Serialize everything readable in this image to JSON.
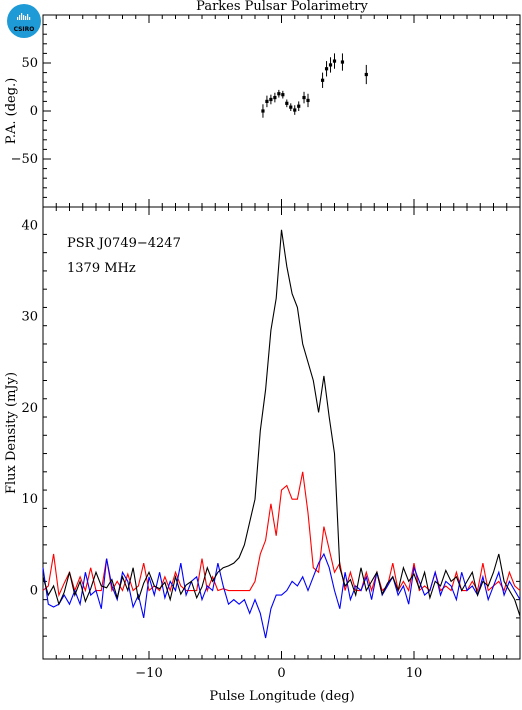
{
  "chart_data": {
    "type": "line",
    "title": "Parkes Pulsar Polarimetry",
    "logo": "CSIRO",
    "logo_colors": {
      "dark": "#0a5c8a",
      "light": "#1e9ad6"
    },
    "annotations": [
      "PSR J0749−4247",
      "1379 MHz"
    ],
    "xlabel": "Pulse Longitude (deg)",
    "xlim": [
      -18,
      18
    ],
    "xticks": [
      -10,
      0,
      10
    ],
    "xtick_labels": [
      "−10",
      "0",
      "10"
    ],
    "pa_panel": {
      "ylabel": "P.A. (deg.)",
      "ylim": [
        -100,
        100
      ],
      "yticks": [
        -50,
        0,
        50
      ],
      "ytick_labels": [
        "−50",
        "0",
        "50"
      ],
      "points": [
        {
          "x": -1.4,
          "y": 0,
          "err": 7
        },
        {
          "x": -1.1,
          "y": 10,
          "err": 6
        },
        {
          "x": -0.8,
          "y": 12,
          "err": 5
        },
        {
          "x": -0.5,
          "y": 14,
          "err": 5
        },
        {
          "x": -0.2,
          "y": 18,
          "err": 4
        },
        {
          "x": 0.1,
          "y": 17,
          "err": 4
        },
        {
          "x": 0.4,
          "y": 8,
          "err": 4
        },
        {
          "x": 0.7,
          "y": 4,
          "err": 4
        },
        {
          "x": 1.0,
          "y": 1,
          "err": 5
        },
        {
          "x": 1.3,
          "y": 5,
          "err": 5
        },
        {
          "x": 1.7,
          "y": 14,
          "err": 6
        },
        {
          "x": 2.0,
          "y": 11,
          "err": 7
        },
        {
          "x": 3.1,
          "y": 32,
          "err": 8
        },
        {
          "x": 3.4,
          "y": 44,
          "err": 8
        },
        {
          "x": 3.7,
          "y": 48,
          "err": 8
        },
        {
          "x": 4.0,
          "y": 52,
          "err": 8
        },
        {
          "x": 4.6,
          "y": 51,
          "err": 9
        },
        {
          "x": 6.4,
          "y": 38,
          "err": 10
        }
      ]
    },
    "flux_panel": {
      "ylabel": "Flux Density (mJy)",
      "ylim": [
        -7.5,
        42
      ],
      "yticks": [
        0,
        10,
        20,
        30,
        40
      ],
      "ytick_labels": [
        "0",
        "10",
        "20",
        "30",
        "40"
      ],
      "x": [
        -18,
        -17.6,
        -17.2,
        -16.8,
        -16.4,
        -16.0,
        -15.6,
        -15.2,
        -14.8,
        -14.4,
        -14.0,
        -13.6,
        -13.2,
        -12.8,
        -12.4,
        -12.0,
        -11.6,
        -11.2,
        -10.8,
        -10.4,
        -10.0,
        -9.6,
        -9.2,
        -8.8,
        -8.4,
        -8.0,
        -7.6,
        -7.2,
        -6.8,
        -6.4,
        -6.0,
        -5.6,
        -5.2,
        -4.8,
        -4.4,
        -4.0,
        -3.6,
        -3.2,
        -2.8,
        -2.4,
        -2.0,
        -1.6,
        -1.2,
        -0.8,
        -0.4,
        0.0,
        0.4,
        0.8,
        1.2,
        1.6,
        2.0,
        2.4,
        2.8,
        3.2,
        3.6,
        4.0,
        4.4,
        4.8,
        5.2,
        5.6,
        6.0,
        6.4,
        6.8,
        7.2,
        7.6,
        8.0,
        8.4,
        8.8,
        9.2,
        9.6,
        10.0,
        10.4,
        10.8,
        11.2,
        11.6,
        12.0,
        12.4,
        12.8,
        13.2,
        13.6,
        14.0,
        14.4,
        14.8,
        15.2,
        15.6,
        16.0,
        16.4,
        16.8,
        17.2,
        17.6,
        18.0
      ],
      "series": [
        {
          "color": "#000000",
          "values": [
            1.5,
            -0.5,
            0.5,
            -1.5,
            -0.2,
            2.0,
            -0.5,
            1.0,
            -1.2,
            0.2,
            2.0,
            0.5,
            0.3,
            1.2,
            -0.8,
            1.5,
            0.0,
            2.5,
            -1.0,
            0.8,
            2.0,
            0.5,
            0.2,
            0.9,
            -1.0,
            1.5,
            -0.4,
            0.6,
            1.0,
            -0.8,
            0.4,
            2.5,
            1.0,
            2.0,
            2.5,
            2.7,
            3.0,
            3.6,
            5.0,
            7.5,
            10.0,
            17.5,
            22.0,
            28.5,
            32.0,
            39.5,
            35.5,
            32.5,
            31.0,
            27.0,
            25.0,
            23.0,
            19.5,
            23.5,
            19.0,
            15.0,
            2.5,
            0.5,
            1.2,
            -0.5,
            2.5,
            0.0,
            1.0,
            2.0,
            -0.4,
            0.8,
            1.5,
            0.0,
            2.5,
            1.0,
            1.8,
            0.2,
            2.0,
            -0.8,
            1.0,
            0.5,
            2.2,
            1.0,
            1.5,
            0.0,
            1.0,
            2.0,
            -0.5,
            1.0,
            0.5,
            2.0,
            4.0,
            1.0,
            0.0,
            -1.0,
            -2.8
          ]
        },
        {
          "color": "#ff0000",
          "values": [
            0.0,
            0.5,
            4.0,
            -0.5,
            0.8,
            2.0,
            0.0,
            1.5,
            0.0,
            2.5,
            0.0,
            0.0,
            3.5,
            0.0,
            1.0,
            0.0,
            1.8,
            0.0,
            0.5,
            3.0,
            0.0,
            0.5,
            0.0,
            1.5,
            0.0,
            2.0,
            0.5,
            0.0,
            0.0,
            0.0,
            3.5,
            0.0,
            1.5,
            0.0,
            0.2,
            0.0,
            0.0,
            0.0,
            0.0,
            0.0,
            1.0,
            4.0,
            5.5,
            9.5,
            6.0,
            11.0,
            11.5,
            10.0,
            10.0,
            13.0,
            8.5,
            2.5,
            2.0,
            7.0,
            4.5,
            2.0,
            3.0,
            0.0,
            2.0,
            0.0,
            0.0,
            2.0,
            0.0,
            2.0,
            0.0,
            0.5,
            3.0,
            0.0,
            1.0,
            0.0,
            3.0,
            0.0,
            0.5,
            0.0,
            2.0,
            0.0,
            0.5,
            0.0,
            2.0,
            0.0,
            0.0,
            1.0,
            0.0,
            3.0,
            0.0,
            0.5,
            1.0,
            0.0,
            2.0,
            0.5,
            0.0
          ]
        },
        {
          "color": "#0000ff",
          "values": [
            2.5,
            -1.5,
            -1.8,
            -1.5,
            -0.5,
            -1.5,
            0.0,
            -1.5,
            2.0,
            -0.5,
            0.0,
            -2.0,
            3.5,
            0.5,
            -1.0,
            2.0,
            1.0,
            -1.8,
            -0.5,
            -3.0,
            1.5,
            -0.5,
            2.0,
            -0.8,
            1.0,
            0.0,
            3.0,
            -0.5,
            1.0,
            1.5,
            -1.0,
            0.5,
            0.0,
            3.0,
            0.5,
            -1.5,
            -1.0,
            -1.5,
            -1.0,
            -2.5,
            -1.0,
            -2.5,
            -5.2,
            -2.0,
            -0.5,
            -0.5,
            0.0,
            1.0,
            0.5,
            1.5,
            0.0,
            1.5,
            3.0,
            4.0,
            2.5,
            0.0,
            -2.0,
            2.0,
            -1.0,
            0.5,
            0.0,
            1.5,
            -1.0,
            2.0,
            -0.5,
            0.5,
            1.5,
            -0.5,
            0.5,
            -1.5,
            2.5,
            1.0,
            -0.5,
            0.0,
            2.0,
            -0.5,
            1.0,
            0.5,
            -1.0,
            2.0,
            0.0,
            0.5,
            -0.5,
            1.5,
            -1.0,
            0.5,
            2.0,
            -0.5,
            1.0,
            0.0,
            -1.0
          ]
        }
      ]
    }
  }
}
